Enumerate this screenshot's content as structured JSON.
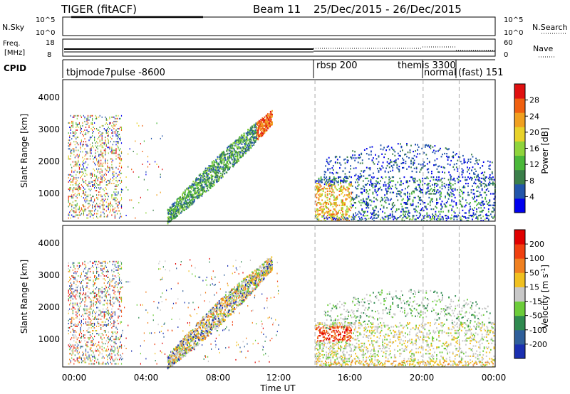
{
  "header": {
    "radar": "TIGER (fitACF)",
    "beam": "Beam 11",
    "date_range": "25/Dec/2015 - 26/Dec/2015"
  },
  "noise_panel": {
    "left_label": "N.Sky",
    "right_label": "N.Search",
    "left_ticks": [
      "10^5",
      "10^0"
    ],
    "right_ticks": [
      "10^5",
      "10^0"
    ]
  },
  "freq_panel": {
    "left_label_1": "Freq.",
    "left_label_2": "[MHz]",
    "left_ticks": [
      "18",
      "8"
    ],
    "right_label": "Nave",
    "right_ticks": [
      "60",
      "0"
    ]
  },
  "cpid": {
    "label": "CPID",
    "segments": [
      {
        "text": "tbjmode7pulse -8600"
      },
      {
        "text": "rbsp 200"
      },
      {
        "text": "themis 3300"
      },
      {
        "text": "normal"
      },
      {
        "text": "(fast) 151"
      }
    ]
  },
  "power_panel": {
    "ylabel": "Slant Range [km]",
    "yticks": [
      "4000",
      "3000",
      "2000",
      "1000"
    ],
    "colorbar_label": "Power [dB]",
    "colorbar_ticks": [
      "28",
      "24",
      "20",
      "16",
      "12",
      "8",
      "4"
    ],
    "colors": [
      "#0000ee",
      "#2255aa",
      "#3b7f4a",
      "#4bb83a",
      "#8fd43c",
      "#e8d22a",
      "#f0a020",
      "#f06010",
      "#e01010"
    ]
  },
  "velocity_panel": {
    "ylabel": "Slant Range [km]",
    "yticks": [
      "4000",
      "3000",
      "2000",
      "1000"
    ],
    "colorbar_label": "Velocity [m s^-1]",
    "colorbar_ticks": [
      "200",
      "100",
      "50",
      "15",
      "-15",
      "-50",
      "-100",
      "-200"
    ],
    "colors": [
      "#1a2fb0",
      "#2f5f9a",
      "#2f8a50",
      "#6ccc3a",
      "#c8c8c8",
      "#f0c020",
      "#f08020",
      "#f04010",
      "#e00000"
    ]
  },
  "xaxis": {
    "ticks": [
      "00:00",
      "04:00",
      "08:00",
      "12:00",
      "16:00",
      "20:00",
      "00:00"
    ],
    "label": "Time UT"
  },
  "chart_data": {
    "type": "heatmap",
    "title": "TIGER (fitACF) Beam 11 25/Dec/2015 - 26/Dec/2015",
    "xlabel": "Time UT",
    "ylabel": "Slant Range [km]",
    "xlim_hours": [
      0,
      24
    ],
    "ylim_km": [
      180,
      4600
    ],
    "mode_change_hours": [
      14.0,
      20.0,
      22.0
    ],
    "power_range_db": [
      0,
      30
    ],
    "velocity_range_ms": [
      -250,
      250
    ],
    "echo_regions": [
      {
        "name": "early",
        "t": [
          0.3,
          3.3
        ],
        "r": [
          200,
          3500
        ],
        "density": 0.5
      },
      {
        "name": "arc",
        "t": [
          5.7,
          11.6
        ],
        "r": [
          300,
          3500
        ],
        "density": 0.8
      },
      {
        "name": "evening-low",
        "t": [
          14.0,
          24.0
        ],
        "r": [
          200,
          1600
        ],
        "density": 0.55
      },
      {
        "name": "evening-high",
        "t": [
          14.0,
          22.5
        ],
        "r": [
          1400,
          2800
        ],
        "density": 0.45
      }
    ]
  }
}
